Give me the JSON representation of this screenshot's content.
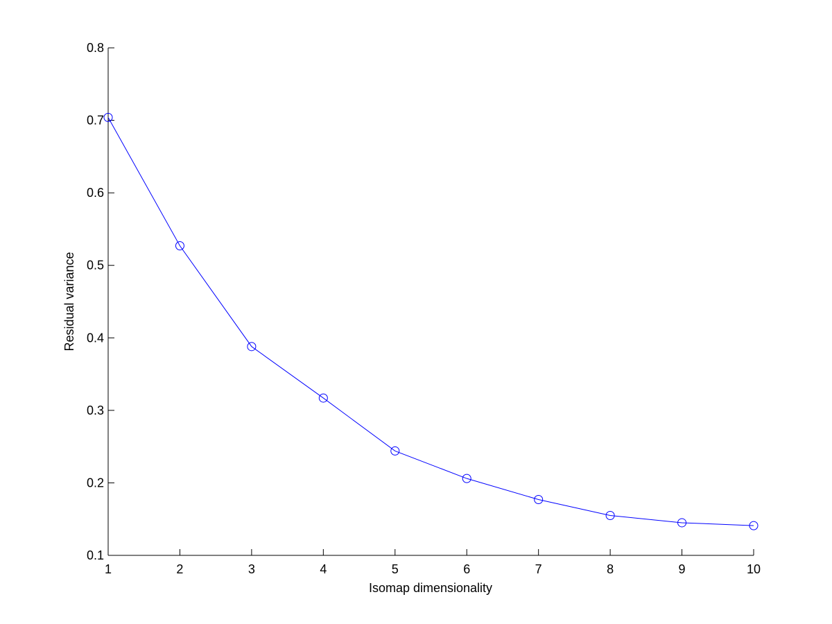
{
  "chart_data": {
    "type": "line",
    "x_label": "Isomap dimensionality",
    "y_label": "Residual variance",
    "x": [
      1,
      2,
      3,
      4,
      5,
      6,
      7,
      8,
      9,
      10
    ],
    "series": [
      {
        "color": "#0000ff",
        "values": [
          0.704,
          0.527,
          0.388,
          0.317,
          0.244,
          0.206,
          0.177,
          0.155,
          0.145,
          0.141
        ]
      }
    ],
    "xlim": [
      1,
      10
    ],
    "xticks": [
      1,
      2,
      3,
      4,
      5,
      6,
      7,
      8,
      9,
      10
    ],
    "ylim": [
      0.1,
      0.8
    ],
    "yticks": [
      0.1,
      0.2,
      0.3,
      0.4,
      0.5,
      0.6,
      0.7,
      0.8
    ],
    "marker": "circle"
  }
}
